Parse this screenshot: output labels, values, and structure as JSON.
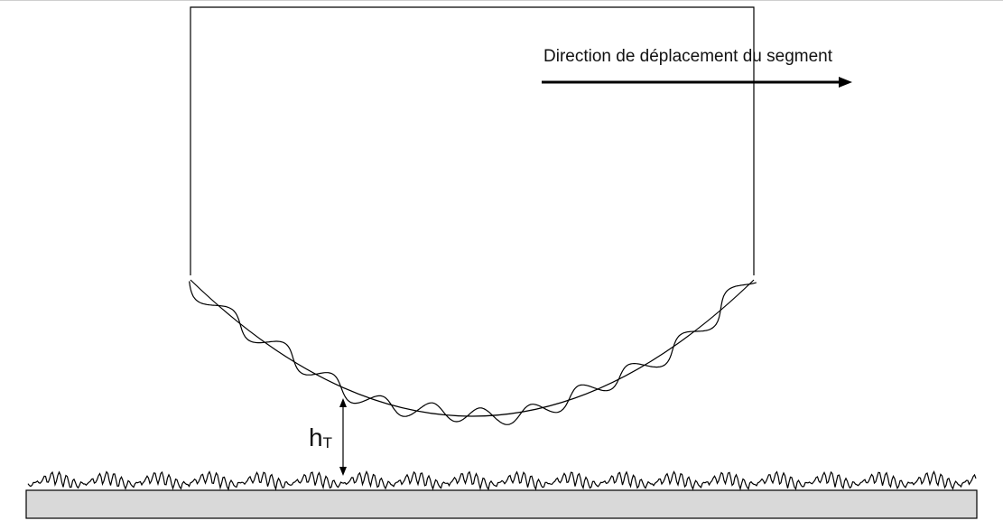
{
  "diagram": {
    "direction_label": "Direction de déplacement du segment",
    "gap_label_main": "h",
    "gap_label_sub": "T",
    "colors": {
      "stroke": "#000000",
      "surface_fill": "#d9d9d9",
      "page_border": "#cfcfcf"
    }
  }
}
